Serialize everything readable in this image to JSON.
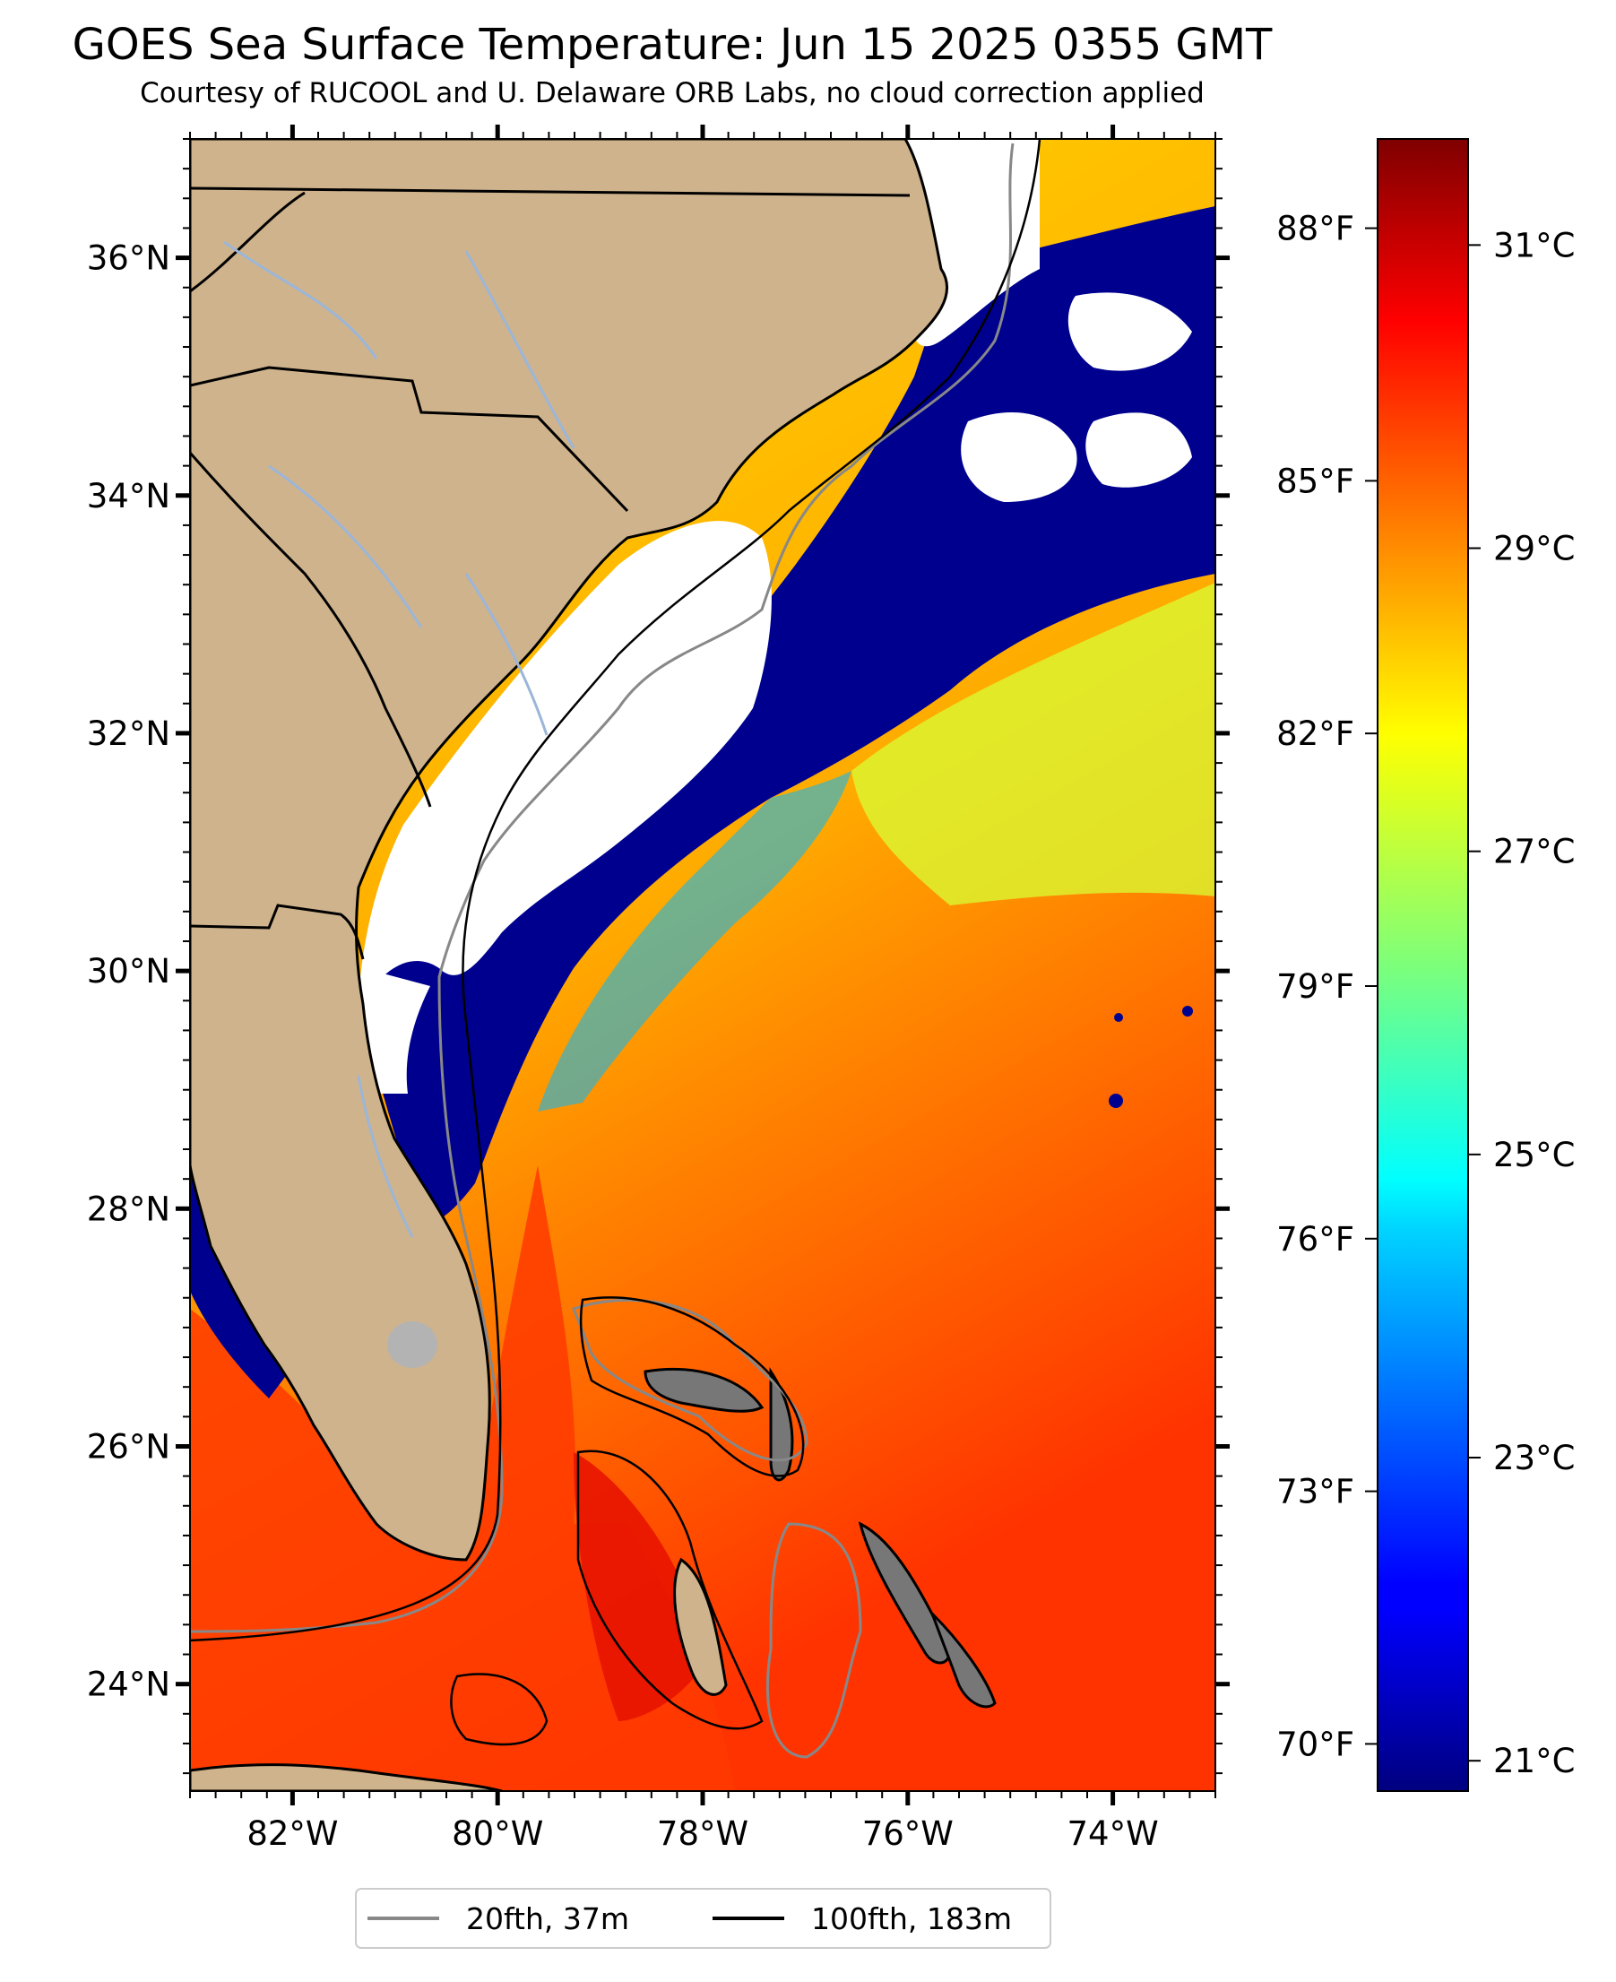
{
  "title": "GOES Sea Surface Temperature: Jun 15 2025 0355 GMT",
  "subtitle": "Courtesy of RUCOOL and U. Delaware ORB Labs, no cloud correction applied",
  "map": {
    "lon_range": [
      -83.0,
      -73.0
    ],
    "lat_range": [
      23.1,
      37.0
    ],
    "lat_ticks": [
      {
        "value": 36,
        "label": "36°N"
      },
      {
        "value": 34,
        "label": "34°N"
      },
      {
        "value": 32,
        "label": "32°N"
      },
      {
        "value": 30,
        "label": "30°N"
      },
      {
        "value": 28,
        "label": "28°N"
      },
      {
        "value": 26,
        "label": "26°N"
      },
      {
        "value": 24,
        "label": "24°N"
      }
    ],
    "lon_ticks": [
      {
        "value": -82,
        "label": "82°W"
      },
      {
        "value": -80,
        "label": "80°W"
      },
      {
        "value": -78,
        "label": "78°W"
      },
      {
        "value": -76,
        "label": "76°W"
      },
      {
        "value": -74,
        "label": "74°W"
      }
    ],
    "colors": {
      "land": "#cfb38c",
      "cloud": "#ffffff",
      "cold_water": "#00008f"
    }
  },
  "colorbar": {
    "colormap": "jet",
    "range_c": [
      20.8,
      31.7
    ],
    "celsius_ticks": [
      {
        "value": 31,
        "label": "31°C"
      },
      {
        "value": 29,
        "label": "29°C"
      },
      {
        "value": 27,
        "label": "27°C"
      },
      {
        "value": 25,
        "label": "25°C"
      },
      {
        "value": 23,
        "label": "23°C"
      },
      {
        "value": 21,
        "label": "21°C"
      }
    ],
    "fahrenheit_ticks": [
      {
        "value": 88,
        "label": "88°F"
      },
      {
        "value": 85,
        "label": "85°F"
      },
      {
        "value": 82,
        "label": "82°F"
      },
      {
        "value": 79,
        "label": "79°F"
      },
      {
        "value": 76,
        "label": "76°F"
      },
      {
        "value": 73,
        "label": "73°F"
      },
      {
        "value": 70,
        "label": "70°F"
      }
    ]
  },
  "legend": {
    "items": [
      {
        "label": "20fth, 37m",
        "color": "#888888"
      },
      {
        "label": "100fth, 183m",
        "color": "#000000"
      }
    ],
    "position": "bottom-center"
  }
}
